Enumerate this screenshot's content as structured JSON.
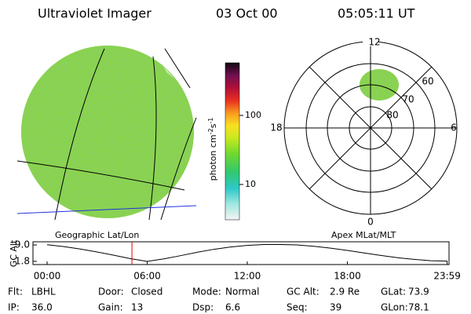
{
  "header": {
    "instrument": "Ultraviolet Imager",
    "date": "03 Oct 00",
    "time": "05:05:11 UT"
  },
  "colorbar": {
    "unit_parts": [
      "photon cm",
      "-2",
      "s",
      "-1"
    ],
    "log_scale": true,
    "ylim": [
      3.08,
      577
    ],
    "yticks": [
      10,
      100
    ]
  },
  "image_labels": {
    "left": "Geographic Lat/Lon",
    "right": "Apex MLat/MLT"
  },
  "polar": {
    "mlt_labels": [
      "12",
      "18",
      "6",
      "0"
    ],
    "lat_labels": [
      "60",
      "70",
      "80"
    ]
  },
  "altitude_plot": {
    "ylabel": "GC Alt",
    "xlim": [
      0,
      24
    ],
    "ylim": [
      0.4,
      10.4
    ],
    "yticks": [
      {
        "value": 9.0,
        "label": "9.0"
      },
      {
        "value": 1.8,
        "label": "1.8"
      }
    ],
    "xticks": [
      {
        "value": 0,
        "label": "00:00"
      },
      {
        "value": 6,
        "label": "06:00"
      },
      {
        "value": 12,
        "label": "12:00"
      },
      {
        "value": 18,
        "label": "18:00"
      },
      {
        "value": 23.983,
        "label": "23:59"
      }
    ],
    "x": [
      0,
      1,
      2,
      3,
      4,
      5,
      6,
      7,
      8,
      9,
      10,
      11,
      12,
      13,
      14,
      15,
      16,
      17,
      18,
      19,
      20,
      21,
      22,
      23,
      24
    ],
    "values": [
      9.1,
      8.3,
      7.2,
      5.9,
      4.5,
      3.0,
      1.8,
      2.9,
      4.3,
      5.8,
      7.1,
      8.1,
      8.8,
      9.2,
      9.2,
      9.0,
      8.4,
      7.6,
      6.6,
      5.5,
      4.4,
      3.4,
      2.7,
      2.1,
      1.9
    ],
    "color": "#000000",
    "current_time": 5.086,
    "current_color": "#e00000"
  },
  "status": [
    [
      [
        "Flt:",
        "LBHL"
      ],
      [
        "Door:",
        "Closed"
      ],
      [
        "Mode:",
        "Normal"
      ],
      [
        "GC Alt:",
        "2.9 Re"
      ],
      [
        "GLat:",
        "73.9"
      ]
    ],
    [
      [
        "IP:",
        "36.0"
      ],
      [
        "Gain:",
        "13"
      ],
      [
        "Dsp:",
        "6.6"
      ],
      [
        "Seq:",
        "39"
      ],
      [
        "GLon:",
        "78.1"
      ]
    ]
  ]
}
